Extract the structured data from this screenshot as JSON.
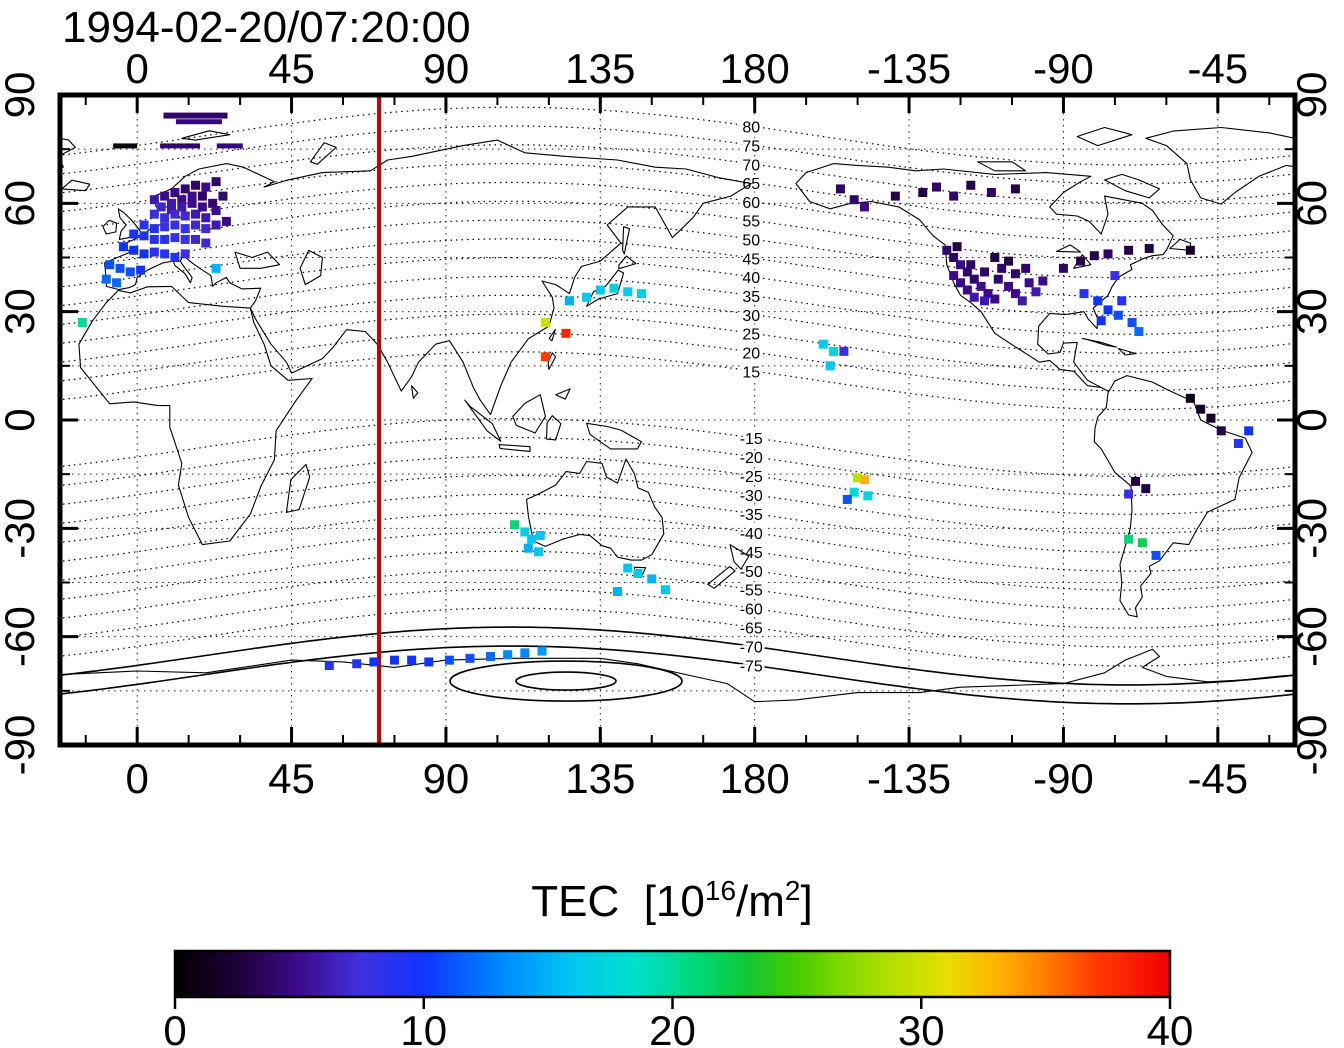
{
  "title": "1994-02-20/07:20:00",
  "map": {
    "lon_ticks": [
      {
        "v": 0,
        "l": "0"
      },
      {
        "v": 45,
        "l": "45"
      },
      {
        "v": 90,
        "l": "90"
      },
      {
        "v": 135,
        "l": "135"
      },
      {
        "v": 180,
        "l": "180"
      },
      {
        "v": 225,
        "l": "-135"
      },
      {
        "v": 270,
        "l": "-90"
      },
      {
        "v": 315,
        "l": "-45"
      }
    ],
    "lat_ticks": [
      {
        "v": 90,
        "l": "90"
      },
      {
        "v": 60,
        "l": "60"
      },
      {
        "v": 30,
        "l": "30"
      },
      {
        "v": 0,
        "l": "0"
      },
      {
        "v": -30,
        "l": "-30"
      },
      {
        "v": -60,
        "l": "-60"
      },
      {
        "v": -90,
        "l": "-90"
      }
    ],
    "red_line_lon": 70.5,
    "contour_levels_north": [
      15,
      20,
      25,
      30,
      35,
      40,
      45,
      50,
      55,
      60,
      65,
      70,
      75,
      80
    ],
    "contour_levels_south": [
      -15,
      -20,
      -25,
      -30,
      -35,
      -40,
      -45,
      -50,
      -55,
      -60,
      -65,
      -70,
      -75
    ],
    "contour_solid_levels": [
      -70,
      -75
    ]
  },
  "colorbar": {
    "title_main": "TEC",
    "title_open": "  [10",
    "title_exp": "16",
    "title_mid": "/m",
    "title_exp2": "2",
    "title_close": "]",
    "ticks": [
      "0",
      "10",
      "20",
      "30",
      "40"
    ],
    "min": 0,
    "max": 40,
    "stops": [
      [
        0,
        "#000000"
      ],
      [
        2.5,
        "#1e0038"
      ],
      [
        5,
        "#3d0a8c"
      ],
      [
        7.5,
        "#4030e0"
      ],
      [
        10,
        "#1133ff"
      ],
      [
        13,
        "#0086ff"
      ],
      [
        16,
        "#00c8f0"
      ],
      [
        18.5,
        "#00e0cc"
      ],
      [
        21,
        "#00d878"
      ],
      [
        23,
        "#10c832"
      ],
      [
        25,
        "#46cc00"
      ],
      [
        27,
        "#85d800"
      ],
      [
        29,
        "#b8e000"
      ],
      [
        31,
        "#e6df00"
      ],
      [
        33,
        "#ffb400"
      ],
      [
        35,
        "#ff7d00"
      ],
      [
        37,
        "#ff3c00"
      ],
      [
        40,
        "#f00000"
      ]
    ]
  },
  "chart_data": {
    "type": "scatter",
    "title": "1994-02-20/07:20:00",
    "x_is": "longitude_deg_east",
    "y_is": "latitude_deg",
    "value_is": "TEC_1e16_per_m2",
    "x_tick_labels": [
      "0",
      "45",
      "90",
      "135",
      "180",
      "-135",
      "-90",
      "-45"
    ],
    "y_tick_labels": [
      "90",
      "60",
      "30",
      "0",
      "-30",
      "-60",
      "-90"
    ],
    "value_range": [
      0,
      40
    ],
    "points_columns": [
      "lon",
      "lat",
      "tec"
    ],
    "points": [
      [
        5,
        61,
        6
      ],
      [
        8,
        62,
        5
      ],
      [
        11,
        63,
        5
      ],
      [
        14,
        64,
        4
      ],
      [
        17,
        65,
        4
      ],
      [
        20,
        64.5,
        5
      ],
      [
        23,
        66,
        4
      ],
      [
        10,
        60,
        6
      ],
      [
        13,
        61,
        5
      ],
      [
        16,
        62,
        5
      ],
      [
        19,
        62,
        4
      ],
      [
        22,
        60,
        4
      ],
      [
        25,
        62,
        4
      ],
      [
        7,
        59,
        7
      ],
      [
        10,
        58.5,
        6
      ],
      [
        13,
        59,
        6
      ],
      [
        16,
        60,
        5
      ],
      [
        19,
        59,
        5
      ],
      [
        5,
        57,
        8
      ],
      [
        8,
        56,
        8
      ],
      [
        11,
        57,
        7
      ],
      [
        14,
        56.5,
        7
      ],
      [
        17,
        57,
        6
      ],
      [
        20,
        56,
        6
      ],
      [
        23,
        58,
        5
      ],
      [
        2,
        54,
        9
      ],
      [
        5,
        53,
        9
      ],
      [
        8,
        53.5,
        8
      ],
      [
        11,
        54,
        8
      ],
      [
        14,
        53,
        8
      ],
      [
        17,
        54,
        7
      ],
      [
        20,
        53,
        7
      ],
      [
        23,
        54,
        6
      ],
      [
        26,
        55,
        5
      ],
      [
        -1,
        51.5,
        10
      ],
      [
        2,
        51,
        9
      ],
      [
        5,
        50,
        9
      ],
      [
        8,
        50,
        9
      ],
      [
        11,
        50.5,
        8
      ],
      [
        14,
        50,
        8
      ],
      [
        17,
        50,
        7
      ],
      [
        20,
        49,
        7
      ],
      [
        -4,
        48,
        10
      ],
      [
        -1,
        47,
        10
      ],
      [
        2,
        46,
        10
      ],
      [
        5,
        46.5,
        9
      ],
      [
        8,
        46,
        9
      ],
      [
        11,
        45,
        9
      ],
      [
        14,
        46,
        8
      ],
      [
        -8,
        43,
        11
      ],
      [
        -5,
        42,
        11
      ],
      [
        -2,
        41,
        11
      ],
      [
        1,
        41.5,
        10
      ],
      [
        -9,
        39,
        12
      ],
      [
        -6,
        38,
        12
      ],
      [
        23,
        42,
        15
      ],
      [
        -16,
        27,
        20
      ],
      [
        -155,
        64,
        4
      ],
      [
        -151,
        61,
        4
      ],
      [
        -148,
        59,
        5
      ],
      [
        -139,
        62,
        3
      ],
      [
        -131,
        63,
        3
      ],
      [
        -127,
        64.5,
        4
      ],
      [
        -122,
        62,
        4
      ],
      [
        -117,
        65,
        3
      ],
      [
        -111,
        63,
        4
      ],
      [
        -104,
        64,
        3
      ],
      [
        -124,
        47,
        4
      ],
      [
        -122,
        45,
        4
      ],
      [
        -120,
        43,
        5
      ],
      [
        -118,
        41,
        4
      ],
      [
        -116,
        39,
        4
      ],
      [
        -114,
        37,
        5
      ],
      [
        -112,
        35,
        5
      ],
      [
        -110,
        33.5,
        5
      ],
      [
        -122,
        40,
        5
      ],
      [
        -120,
        38,
        5
      ],
      [
        -118,
        36,
        5
      ],
      [
        -116,
        34,
        6
      ],
      [
        -113,
        33,
        6
      ],
      [
        -117,
        43,
        4
      ],
      [
        -113,
        41,
        4
      ],
      [
        -109,
        39,
        4
      ],
      [
        -106,
        37,
        5
      ],
      [
        -104,
        35,
        5
      ],
      [
        -102,
        33,
        6
      ],
      [
        -108,
        42,
        4
      ],
      [
        -104,
        40.5,
        4
      ],
      [
        -100,
        38,
        5
      ],
      [
        -98,
        35.5,
        6
      ],
      [
        -121,
        48,
        3
      ],
      [
        -110,
        45,
        3
      ],
      [
        -106,
        44,
        3
      ],
      [
        -101,
        42,
        4
      ],
      [
        -96,
        38.5,
        5
      ],
      [
        -90,
        42,
        4
      ],
      [
        -85,
        44,
        3
      ],
      [
        -81,
        45.5,
        3
      ],
      [
        -77,
        46,
        4
      ],
      [
        -71,
        47,
        3
      ],
      [
        -65,
        47.5,
        3
      ],
      [
        -53,
        47,
        2
      ],
      [
        -84,
        35,
        9
      ],
      [
        -80,
        33,
        10
      ],
      [
        -77,
        30.5,
        10
      ],
      [
        -74,
        29,
        11
      ],
      [
        -70,
        27,
        11
      ],
      [
        -68,
        24.5,
        12
      ],
      [
        -73,
        33,
        9
      ],
      [
        -79,
        27.5,
        10
      ],
      [
        -75,
        40,
        8
      ],
      [
        -160,
        21,
        16
      ],
      [
        -157,
        19,
        17
      ],
      [
        -154,
        19,
        8
      ],
      [
        -158,
        15,
        16
      ],
      [
        -150,
        -16,
        29
      ],
      [
        -148,
        -16.5,
        33
      ],
      [
        -151,
        -20,
        18
      ],
      [
        -147,
        -21,
        17
      ],
      [
        -153,
        -22,
        11
      ],
      [
        131,
        34,
        16
      ],
      [
        135,
        36,
        16
      ],
      [
        139,
        36.5,
        17
      ],
      [
        143,
        35.5,
        16
      ],
      [
        147,
        35,
        17
      ],
      [
        126,
        33,
        15
      ],
      [
        119,
        27,
        30
      ],
      [
        125,
        24,
        38
      ],
      [
        119,
        17.5,
        37
      ],
      [
        110,
        -29,
        21
      ],
      [
        113,
        -31,
        17
      ],
      [
        115,
        -33,
        16
      ],
      [
        117.5,
        -32,
        16
      ],
      [
        114,
        -35.5,
        15
      ],
      [
        117,
        -36.5,
        16
      ],
      [
        143,
        -41,
        16
      ],
      [
        146,
        -42.5,
        16
      ],
      [
        150,
        -44,
        15
      ],
      [
        154,
        -47,
        16
      ],
      [
        140,
        -47.5,
        15
      ],
      [
        56,
        -68,
        9
      ],
      [
        64,
        -67.5,
        9
      ],
      [
        69,
        -67,
        10
      ],
      [
        75,
        -66.5,
        10
      ],
      [
        80,
        -66.5,
        10
      ],
      [
        85,
        -67,
        10
      ],
      [
        91,
        -66.5,
        11
      ],
      [
        97,
        -66,
        11
      ],
      [
        103,
        -65.5,
        12
      ],
      [
        108,
        -65,
        13
      ],
      [
        113,
        -64.5,
        13
      ],
      [
        118,
        -64,
        14
      ],
      [
        -71,
        -33,
        21
      ],
      [
        -67,
        -34,
        22
      ],
      [
        -63,
        -37.5,
        11
      ],
      [
        -53,
        6,
        1
      ],
      [
        -50,
        3,
        2
      ],
      [
        -47,
        0.5,
        2
      ],
      [
        -44,
        -3,
        3
      ],
      [
        -36,
        -3,
        10
      ],
      [
        -39,
        -6.5,
        9
      ],
      [
        -69,
        -17,
        3
      ],
      [
        -66,
        -19,
        3
      ],
      [
        -71,
        -20.5,
        8
      ]
    ],
    "bars_columns": [
      "lon",
      "lat",
      "tec",
      "px_w",
      "px_h"
    ],
    "bars": [
      [
        17,
        84.3,
        4,
        64,
        6
      ],
      [
        18,
        82.6,
        4.5,
        46,
        5
      ],
      [
        -3.5,
        75.9,
        0.5,
        24,
        5
      ],
      [
        12.5,
        75.9,
        4,
        40,
        5
      ],
      [
        27,
        75.9,
        4.5,
        26,
        5
      ]
    ]
  }
}
